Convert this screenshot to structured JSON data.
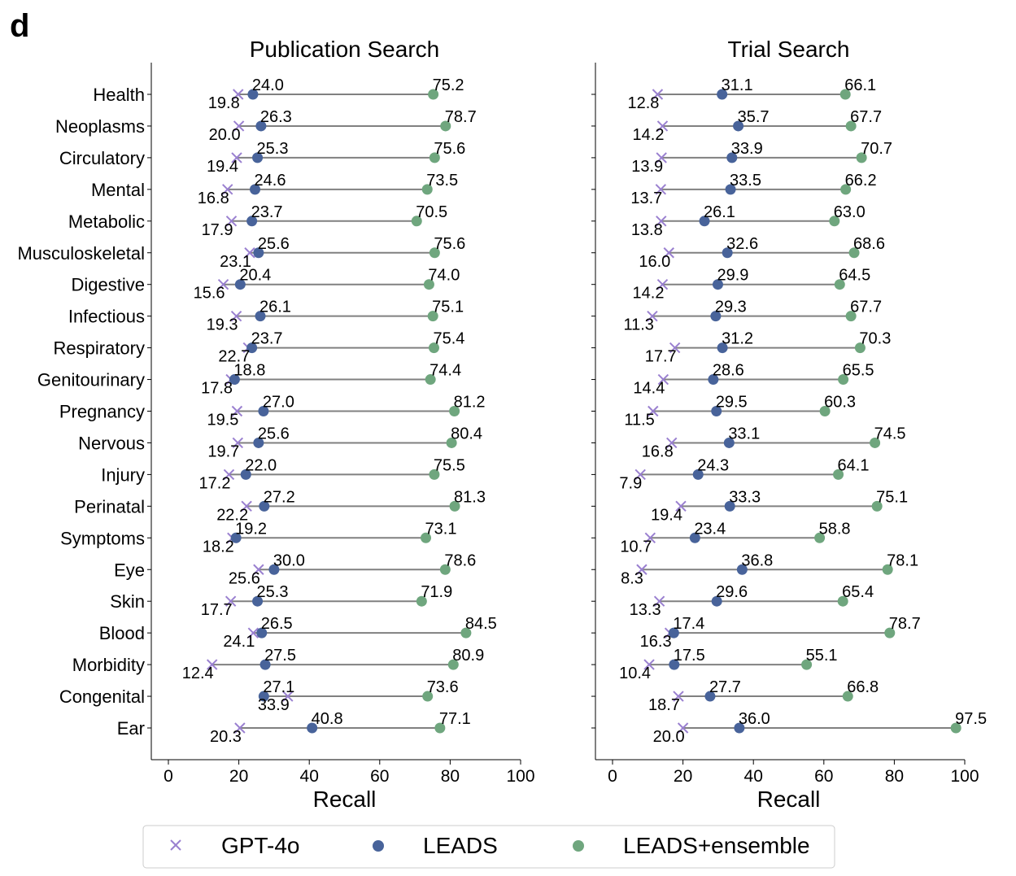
{
  "panel_label": "d",
  "legend": {
    "items": [
      "GPT-4o",
      "LEADS",
      "LEADS+ensemble"
    ]
  },
  "colors": {
    "gpt": "#9a80d0",
    "leads": "#48639a",
    "ensemble": "#6fa67e",
    "line": "#808080"
  },
  "chart_data": [
    {
      "type": "dumbbell",
      "title": "Publication Search",
      "xlabel": "Recall",
      "xlim": [
        0,
        100
      ],
      "xticks": [
        0,
        20,
        40,
        60,
        80,
        100
      ],
      "categories": [
        "Health",
        "Neoplasms",
        "Circulatory",
        "Mental",
        "Metabolic",
        "Musculoskeletal",
        "Digestive",
        "Infectious",
        "Respiratory",
        "Genitourinary",
        "Pregnancy",
        "Nervous",
        "Injury",
        "Perinatal",
        "Symptoms",
        "Eye",
        "Skin",
        "Blood",
        "Morbidity",
        "Congenital",
        "Ear"
      ],
      "series": [
        {
          "name": "GPT-4o",
          "values": [
            19.8,
            20.0,
            19.4,
            16.8,
            17.9,
            23.1,
            15.6,
            19.3,
            22.7,
            17.8,
            19.5,
            19.7,
            17.2,
            22.2,
            18.2,
            25.6,
            17.7,
            24.1,
            12.4,
            33.9,
            20.3
          ]
        },
        {
          "name": "LEADS",
          "values": [
            24.0,
            26.3,
            25.3,
            24.6,
            23.7,
            25.6,
            20.4,
            26.1,
            23.7,
            18.8,
            27.0,
            25.6,
            22.0,
            27.2,
            19.2,
            30.0,
            25.3,
            26.5,
            27.5,
            27.1,
            40.8
          ]
        },
        {
          "name": "LEADS+ensemble",
          "values": [
            75.2,
            78.7,
            75.6,
            73.5,
            70.5,
            75.6,
            74.0,
            75.1,
            75.4,
            74.4,
            81.2,
            80.4,
            75.5,
            81.3,
            73.1,
            78.6,
            71.9,
            84.5,
            80.9,
            73.6,
            77.1
          ]
        }
      ]
    },
    {
      "type": "dumbbell",
      "title": "Trial Search",
      "xlabel": "Recall",
      "xlim": [
        0,
        100
      ],
      "xticks": [
        0,
        20,
        40,
        60,
        80,
        100
      ],
      "categories": [
        "Health",
        "Neoplasms",
        "Circulatory",
        "Mental",
        "Metabolic",
        "Musculoskeletal",
        "Digestive",
        "Infectious",
        "Respiratory",
        "Genitourinary",
        "Pregnancy",
        "Nervous",
        "Injury",
        "Perinatal",
        "Symptoms",
        "Eye",
        "Skin",
        "Blood",
        "Morbidity",
        "Congenital",
        "Ear"
      ],
      "series": [
        {
          "name": "GPT-4o",
          "values": [
            12.8,
            14.2,
            13.9,
            13.7,
            13.8,
            16.0,
            14.2,
            11.3,
            17.7,
            14.4,
            11.5,
            16.8,
            7.9,
            19.4,
            10.7,
            8.3,
            13.3,
            16.3,
            10.4,
            18.7,
            20.0
          ]
        },
        {
          "name": "LEADS",
          "values": [
            31.1,
            35.7,
            33.9,
            33.5,
            26.1,
            32.6,
            29.9,
            29.3,
            31.2,
            28.6,
            29.5,
            33.1,
            24.3,
            33.3,
            23.4,
            36.8,
            29.6,
            17.4,
            17.5,
            27.7,
            36.0
          ]
        },
        {
          "name": "LEADS+ensemble",
          "values": [
            66.1,
            67.7,
            70.7,
            66.2,
            63.0,
            68.6,
            64.5,
            67.7,
            70.3,
            65.5,
            60.3,
            74.5,
            64.1,
            75.1,
            58.8,
            78.1,
            65.4,
            78.7,
            55.1,
            66.8,
            97.5
          ]
        }
      ]
    }
  ]
}
